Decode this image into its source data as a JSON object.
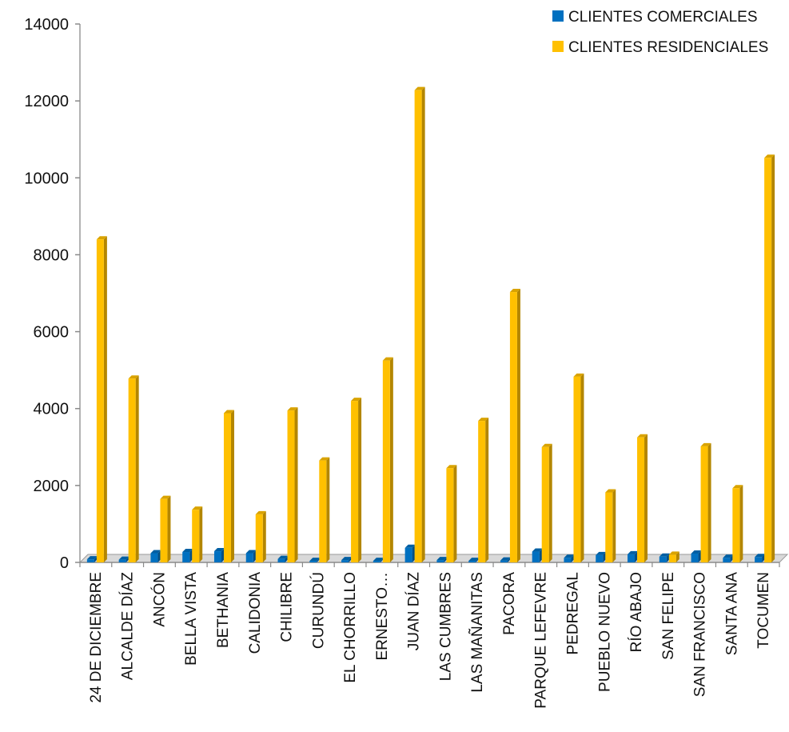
{
  "chart_data": {
    "type": "bar",
    "title": "",
    "xlabel": "",
    "ylabel": "",
    "ylim": [
      0,
      14000
    ],
    "yticks": [
      0,
      2000,
      4000,
      6000,
      8000,
      10000,
      12000,
      14000
    ],
    "legend_position": "top-right",
    "grid": false,
    "categories": [
      "24 DE DICIEMBRE",
      "ALCALDE DÍAZ",
      "ANCÓN",
      "BELLA VISTA",
      "BETHANIA",
      "CALIDONIA",
      "CHILIBRE",
      "CURUNDÚ",
      "EL CHORRILLO",
      "ERNESTO…",
      "JUAN DÍAZ",
      "LAS CUMBRES",
      "LAS MAÑANITAS",
      "PACORA",
      "PARQUE LEFEVRE",
      "PEDREGAL",
      "PUEBLO NUEVO",
      "RÍO ABAJO",
      "SAN FELIPE",
      "SAN FRANCISCO",
      "SANTA ANA",
      "TOCUMEN"
    ],
    "series": [
      {
        "name": "CLIENTES COMERCIALES",
        "color": "#0070C0",
        "values": [
          80,
          70,
          240,
          270,
          290,
          240,
          90,
          40,
          60,
          40,
          380,
          60,
          40,
          50,
          280,
          120,
          190,
          210,
          150,
          230,
          120,
          140
        ]
      },
      {
        "name": "CLIENTES RESIDENCIALES",
        "color": "#FFC000",
        "values": [
          8400,
          4780,
          1650,
          1370,
          3880,
          1250,
          3950,
          2650,
          4200,
          5250,
          12280,
          2450,
          3680,
          7030,
          3000,
          4830,
          1820,
          3250,
          200,
          3020,
          1930,
          10520
        ]
      }
    ]
  }
}
